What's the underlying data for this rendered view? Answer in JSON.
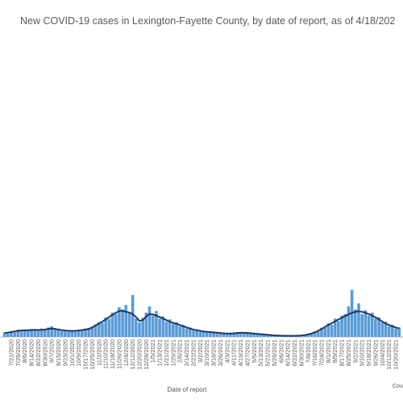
{
  "chart_data": {
    "type": "bar",
    "title": "New COVID-19 cases in Lexington-Fayette County, by date of report, as of 4/18/202",
    "x_label": "Date of report",
    "annotation": "Cou",
    "ylim": [
      0,
      2000
    ],
    "categories": [
      null,
      null,
      "7/21/2020",
      null,
      "7/29/2020",
      null,
      "8/6/2020",
      null,
      "8/14/2020",
      null,
      "8/22/2020",
      null,
      "8/30/2020",
      null,
      "9/7/2020",
      null,
      "9/15/2020",
      null,
      "9/23/2020",
      null,
      "10/1/2020",
      null,
      "10/9/2020",
      null,
      "10/17/2020",
      null,
      "10/25/2020",
      null,
      "11/2/2020",
      null,
      "11/10/2020",
      null,
      "11/18/2020",
      null,
      "11/26/2020",
      null,
      "12/4/2020",
      null,
      "12/12/2020",
      null,
      "12/20/2020",
      null,
      "12/28/2020",
      null,
      "1/5/2021",
      null,
      "1/13/2021",
      null,
      "1/21/2021",
      null,
      "1/29/2021",
      null,
      "2/6/2021",
      null,
      "2/14/2021",
      null,
      "2/22/2021",
      null,
      "3/2/2021",
      null,
      "3/10/2021",
      null,
      "3/18/2021",
      null,
      "3/26/2021",
      null,
      "4/3/2021",
      null,
      "4/11/2021",
      null,
      "4/19/2021",
      null,
      "4/27/2021",
      null,
      "5/5/2021",
      null,
      "5/13/2021",
      null,
      "5/21/2021",
      null,
      "5/29/2021",
      null,
      "6/6/2021",
      null,
      "6/14/2021",
      null,
      "6/22/2021",
      null,
      "6/30/2021",
      null,
      "7/8/2021",
      null,
      "7/16/2021",
      null,
      "7/24/2021",
      null,
      "8/1/2021",
      null,
      "8/9/2021",
      null,
      "8/17/2021",
      null,
      "8/25/2021",
      null,
      "9/2/2021",
      null,
      "9/10/2021",
      null,
      "9/18/2021",
      null,
      "9/26/2021",
      null,
      "10/4/2021",
      null,
      "10/12/2021",
      null,
      "10/20/2021",
      null
    ],
    "series": [
      {
        "type": "bar",
        "color": "#5b9bd5",
        "values": [
          30,
          22,
          38,
          30,
          48,
          36,
          50,
          40,
          52,
          44,
          40,
          55,
          44,
          62,
          70,
          48,
          55,
          38,
          46,
          36,
          44,
          35,
          48,
          40,
          55,
          60,
          70,
          82,
          98,
          92,
          128,
          118,
          160,
          150,
          195,
          180,
          210,
          155,
          275,
          120,
          95,
          125,
          160,
          200,
          140,
          170,
          120,
          135,
          100,
          115,
          85,
          98,
          70,
          80,
          55,
          62,
          42,
          50,
          36,
          40,
          30,
          36,
          26,
          32,
          22,
          28,
          18,
          26,
          28,
          24,
          32,
          24,
          30,
          20,
          26,
          18,
          20,
          14,
          16,
          10,
          12,
          7,
          10,
          6,
          9,
          5,
          8,
          7,
          11,
          14,
          20,
          26,
          36,
          34,
          60,
          58,
          90,
          80,
          120,
          105,
          140,
          150,
          200,
          310,
          180,
          220,
          150,
          175,
          140,
          160,
          120,
          130,
          95,
          100,
          70,
          80,
          55,
          62
        ]
      },
      {
        "type": "line",
        "color": "#1f3864",
        "values": [
          25,
          28,
          32,
          36,
          40,
          42,
          42,
          44,
          45,
          46,
          45,
          46,
          48,
          52,
          55,
          52,
          48,
          44,
          42,
          40,
          40,
          40,
          42,
          45,
          48,
          52,
          62,
          75,
          88,
          100,
          115,
          130,
          145,
          158,
          170,
          172,
          165,
          160,
          150,
          130,
          105,
          110,
          135,
          150,
          148,
          140,
          130,
          120,
          110,
          100,
          92,
          85,
          78,
          70,
          62,
          55,
          48,
          44,
          40,
          36,
          34,
          32,
          30,
          28,
          26,
          24,
          22,
          22,
          24,
          26,
          27,
          27,
          26,
          24,
          22,
          20,
          18,
          16,
          14,
          12,
          10,
          9,
          8,
          8,
          7,
          7,
          7,
          8,
          9,
          12,
          16,
          22,
          30,
          40,
          52,
          65,
          78,
          90,
          102,
          115,
          125,
          138,
          148,
          158,
          165,
          168,
          165,
          158,
          150,
          140,
          128,
          115,
          100,
          88,
          78,
          70,
          62,
          56
        ]
      }
    ]
  }
}
